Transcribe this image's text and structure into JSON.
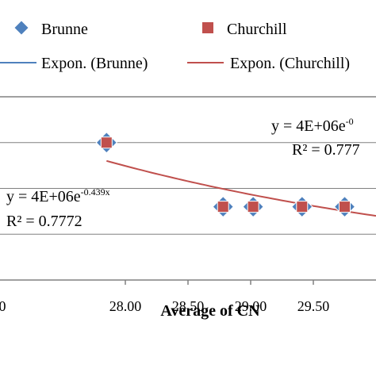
{
  "chart_data": {
    "type": "scatter",
    "title": "",
    "xlabel": "Average of CN",
    "ylabel": "",
    "xlim": [
      27.0,
      30.0
    ],
    "ylim": [
      0,
      40
    ],
    "x_ticks": [
      28.0,
      28.5,
      29.0,
      29.5
    ],
    "x_tick_labels": [
      "28.00",
      "28.50",
      "29.00",
      "29.50"
    ],
    "left_edge_tick_fragment": "0",
    "grid": true,
    "legend_position": "top",
    "series": [
      {
        "name": "Brunne",
        "marker": "diamond",
        "color": "#4f81bd",
        "x": [
          27.85,
          28.78,
          29.02,
          29.41,
          29.75
        ],
        "y": [
          30,
          16,
          16,
          16,
          16
        ]
      },
      {
        "name": "Churchill",
        "marker": "square",
        "color": "#c0504d",
        "x": [
          27.85,
          28.78,
          29.02,
          29.41,
          29.75
        ],
        "y": [
          30,
          16,
          16,
          16,
          16
        ]
      }
    ],
    "trendlines": [
      {
        "name": "Expon. (Brunne)",
        "color": "#4f81bd",
        "type": "exponential"
      },
      {
        "name": "Expon. (Churchill)",
        "color": "#c0504d",
        "type": "exponential",
        "x_range": [
          27.85,
          30.0
        ],
        "y_range": [
          26,
          14
        ]
      }
    ],
    "annotations": {
      "brunne_eq_main": "y = 4E+06e",
      "brunne_eq_exp": "-0.439x",
      "brunne_r2": "R² = 0.7772",
      "churchill_eq_main": "y = 4E+06e",
      "churchill_eq_exp": "-0",
      "churchill_r2": "R² = 0.777"
    }
  }
}
